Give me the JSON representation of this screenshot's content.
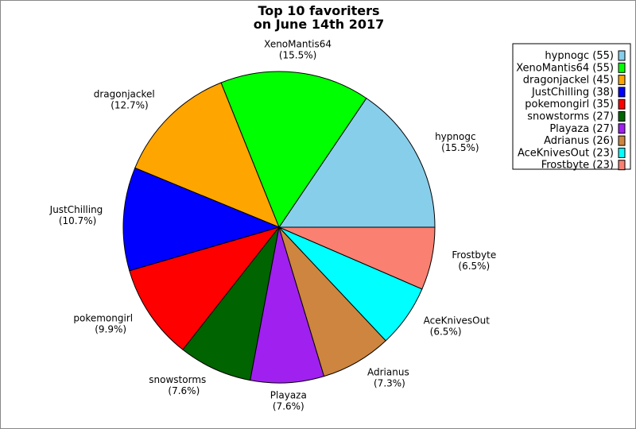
{
  "chart_data": {
    "type": "pie",
    "title": [
      "Top 10 favoriters",
      "on June 14th 2017"
    ],
    "start_angle_deg": 0,
    "direction": "counterclockwise",
    "legend_placement": "top-right",
    "slices": [
      {
        "name": "hypnogc",
        "value": 55,
        "pct": "15.5%",
        "color": "#87CEEB"
      },
      {
        "name": "XenoMantis64",
        "value": 55,
        "pct": "15.5%",
        "color": "#00FF00"
      },
      {
        "name": "dragonjackel",
        "value": 45,
        "pct": "12.7%",
        "color": "#FFA500"
      },
      {
        "name": "JustChilling",
        "value": 38,
        "pct": "10.7%",
        "color": "#0000FF"
      },
      {
        "name": "pokemongirl",
        "value": 35,
        "pct": "9.9%",
        "color": "#FF0000"
      },
      {
        "name": "snowstorms",
        "value": 27,
        "pct": "7.6%",
        "color": "#006400"
      },
      {
        "name": "Playaza",
        "value": 27,
        "pct": "7.6%",
        "color": "#A020F0"
      },
      {
        "name": "Adrianus",
        "value": 26,
        "pct": "7.3%",
        "color": "#CD853F"
      },
      {
        "name": "AceKnivesOut",
        "value": 23,
        "pct": "6.5%",
        "color": "#00FFFF"
      },
      {
        "name": "Frostbyte",
        "value": 23,
        "pct": "6.5%",
        "color": "#FA8072"
      }
    ]
  }
}
